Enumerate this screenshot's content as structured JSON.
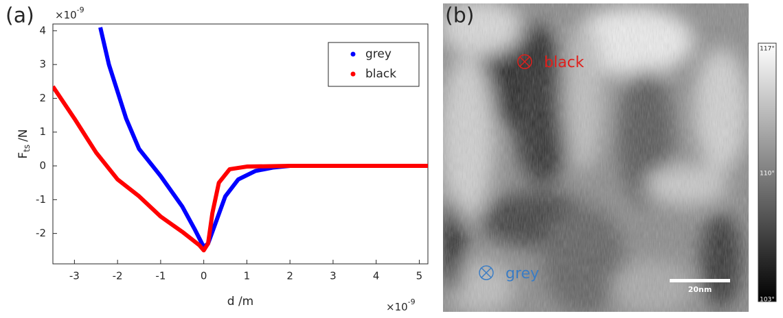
{
  "chart_data": {
    "type": "line",
    "panel_label": "(a)",
    "xlabel": "d /m",
    "ylabel": {
      "main": "F",
      "sub": "ts",
      "unit": "/N"
    },
    "x_exponent": {
      "base": "×10",
      "power": "-9"
    },
    "y_exponent": {
      "base": "×10",
      "power": "-9"
    },
    "xlim": [
      -3.5,
      5.2
    ],
    "ylim": [
      -2.9,
      4.2
    ],
    "xticks": [
      -3,
      -2,
      -1,
      0,
      1,
      2,
      3,
      4,
      5
    ],
    "yticks": [
      -2,
      -1,
      0,
      1,
      2,
      3,
      4
    ],
    "grid": false,
    "legend": "top-right",
    "series": [
      {
        "name": "grey",
        "color": "#0000ff",
        "x": [
          -2.4,
          -2.2,
          -2.0,
          -1.8,
          -1.5,
          -1.0,
          -0.5,
          -0.2,
          0.0,
          0.1,
          0.3,
          0.5,
          0.8,
          1.2,
          1.6,
          2.0,
          3.0,
          4.0,
          5.2
        ],
        "values": [
          4.1,
          3.0,
          2.2,
          1.4,
          0.5,
          -0.3,
          -1.2,
          -1.9,
          -2.4,
          -2.3,
          -1.6,
          -0.9,
          -0.4,
          -0.15,
          -0.05,
          0,
          0,
          0,
          0
        ]
      },
      {
        "name": "black",
        "color": "#ff0000",
        "x": [
          -3.5,
          -3.0,
          -2.5,
          -2.0,
          -1.5,
          -1.0,
          -0.5,
          -0.1,
          0.0,
          0.1,
          0.2,
          0.35,
          0.6,
          1.0,
          2.0,
          5.2
        ],
        "values": [
          2.35,
          1.4,
          0.4,
          -0.4,
          -0.9,
          -1.5,
          -1.95,
          -2.35,
          -2.5,
          -2.3,
          -1.4,
          -0.5,
          -0.1,
          -0.02,
          0,
          0
        ]
      }
    ]
  },
  "image": {
    "panel_label": "(b)",
    "markers": [
      {
        "label": "black",
        "color": "#e0201c"
      },
      {
        "label": "grey",
        "color": "#3a7cc4"
      }
    ],
    "scale_bar": "20nm",
    "colorbar": {
      "top": "117°",
      "middle": "110°",
      "bottom": "103°"
    }
  }
}
